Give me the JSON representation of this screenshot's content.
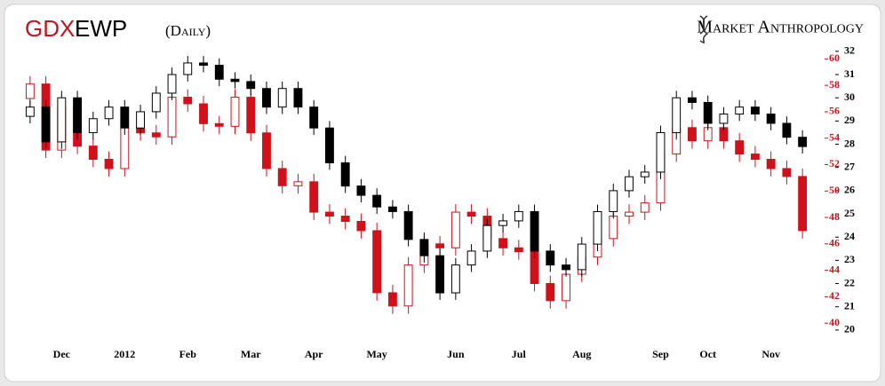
{
  "chart_data": {
    "type": "candlestick",
    "subtitle": "(Daily)",
    "brand": "Market Anthropology",
    "categories": [
      null,
      null,
      "Dec",
      null,
      null,
      null,
      "2012",
      null,
      null,
      null,
      "Feb",
      null,
      null,
      null,
      "Mar",
      null,
      null,
      null,
      "Apr",
      null,
      null,
      null,
      "May",
      null,
      null,
      null,
      null,
      "Jun",
      null,
      null,
      null,
      "Jul",
      null,
      null,
      null,
      "Aug",
      null,
      null,
      null,
      null,
      "Sep",
      null,
      null,
      "Oct",
      null,
      null,
      null,
      "Nov",
      null,
      null
    ],
    "ylim": [
      19.5,
      32.3
    ],
    "yticks": [
      20,
      21,
      22,
      23,
      24,
      25,
      26,
      27,
      28,
      29,
      30,
      31,
      32
    ],
    "y2lim": [
      38.6,
      61.1
    ],
    "y2ticks": [
      40,
      42,
      44,
      46,
      48,
      50,
      52,
      54,
      56,
      58,
      60
    ],
    "series": [
      {
        "name": "EWP",
        "color": "#000000",
        "axis": "y",
        "open": [
          29.2,
          29.6,
          28.1,
          30.0,
          28.5,
          29.1,
          29.6,
          28.7,
          29.4,
          30.2,
          31.0,
          31.5,
          31.4,
          30.8,
          30.7,
          30.4,
          29.6,
          30.4,
          29.6,
          28.7,
          27.2,
          26.2,
          25.8,
          25.3,
          25.1,
          23.9,
          23.2,
          21.6,
          22.8,
          23.4,
          24.5,
          24.7,
          25.1,
          23.4,
          22.8,
          22.6,
          23.7,
          25.1,
          26.0,
          26.6,
          26.8,
          28.5,
          30.0,
          29.8,
          28.9,
          29.3,
          29.6,
          29.3,
          28.9,
          28.3
        ],
        "high": [
          29.9,
          29.9,
          30.3,
          30.3,
          29.4,
          29.9,
          29.9,
          29.7,
          30.5,
          31.3,
          31.8,
          31.8,
          31.7,
          31.1,
          31.0,
          30.7,
          30.7,
          30.7,
          29.9,
          29.0,
          27.5,
          26.5,
          26.1,
          25.6,
          25.4,
          24.2,
          23.5,
          23.1,
          23.7,
          24.8,
          25.0,
          25.4,
          25.4,
          23.7,
          23.1,
          24.0,
          25.4,
          26.3,
          26.9,
          27.1,
          28.8,
          30.3,
          30.3,
          30.1,
          29.6,
          29.9,
          29.9,
          29.6,
          29.2,
          28.6
        ],
        "low": [
          28.9,
          27.8,
          27.8,
          28.2,
          28.2,
          28.8,
          28.4,
          28.4,
          29.1,
          29.9,
          30.7,
          31.1,
          30.5,
          30.4,
          30.1,
          29.3,
          29.3,
          29.3,
          28.4,
          26.9,
          25.9,
          25.5,
          25.0,
          24.8,
          23.6,
          22.9,
          21.3,
          21.3,
          22.5,
          23.1,
          24.2,
          24.4,
          23.1,
          22.5,
          22.3,
          22.3,
          23.4,
          24.8,
          25.7,
          26.3,
          26.5,
          28.2,
          29.5,
          28.6,
          28.6,
          29.0,
          29.0,
          28.6,
          28.0,
          27.6
        ],
        "close": [
          29.6,
          28.1,
          30.0,
          28.5,
          29.1,
          29.6,
          28.7,
          29.4,
          30.2,
          31.0,
          31.5,
          31.4,
          30.8,
          30.7,
          30.4,
          29.6,
          30.4,
          29.6,
          28.7,
          27.2,
          26.2,
          25.8,
          25.3,
          25.1,
          23.9,
          23.2,
          21.6,
          22.8,
          23.4,
          24.5,
          24.7,
          25.1,
          23.4,
          22.8,
          22.6,
          23.7,
          25.1,
          26.0,
          26.6,
          26.8,
          28.5,
          30.0,
          29.8,
          28.9,
          29.3,
          29.6,
          29.3,
          28.9,
          28.3,
          27.9
        ]
      },
      {
        "name": "GDX",
        "color": "#d0111b",
        "axis": "y2",
        "open": [
          57.0,
          58.1,
          53.1,
          56.4,
          53.4,
          52.4,
          51.7,
          54.8,
          54.4,
          54.1,
          57.1,
          56.6,
          55.1,
          54.9,
          57.1,
          54.4,
          51.7,
          50.4,
          50.7,
          48.4,
          48.1,
          47.7,
          47.0,
          42.3,
          41.3,
          44.4,
          46.0,
          45.7,
          48.4,
          48.1,
          46.4,
          45.7,
          45.4,
          43.0,
          41.7,
          43.7,
          45.0,
          46.4,
          48.1,
          48.4,
          49.1,
          52.8,
          54.8,
          53.8,
          54.8,
          53.8,
          52.8,
          52.4,
          51.7,
          51.1
        ],
        "high": [
          58.7,
          58.7,
          57.0,
          57.0,
          54.0,
          53.0,
          55.4,
          55.4,
          55.0,
          57.7,
          57.7,
          57.2,
          55.7,
          57.7,
          57.7,
          55.0,
          52.3,
          51.3,
          51.3,
          49.0,
          48.7,
          48.3,
          47.6,
          42.9,
          45.0,
          46.6,
          46.6,
          49.0,
          49.0,
          48.7,
          47.0,
          46.3,
          46.0,
          43.6,
          44.3,
          45.6,
          47.0,
          48.7,
          49.0,
          49.7,
          53.4,
          55.4,
          55.4,
          55.4,
          55.4,
          54.4,
          53.4,
          53.0,
          52.3,
          51.7
        ],
        "low": [
          56.4,
          52.5,
          52.5,
          52.8,
          51.8,
          51.1,
          51.1,
          53.8,
          53.5,
          53.5,
          56.0,
          54.5,
          54.3,
          54.3,
          53.8,
          51.1,
          49.8,
          49.8,
          47.8,
          47.5,
          47.1,
          46.4,
          41.7,
          40.7,
          40.7,
          43.8,
          45.1,
          45.1,
          47.5,
          45.8,
          45.1,
          44.8,
          42.4,
          41.1,
          41.1,
          43.1,
          44.4,
          45.8,
          47.5,
          47.8,
          48.5,
          52.2,
          53.2,
          53.2,
          53.2,
          52.2,
          51.8,
          51.1,
          50.5,
          46.4
        ],
        "close": [
          58.1,
          53.1,
          56.4,
          53.4,
          52.4,
          51.7,
          54.8,
          54.4,
          54.1,
          57.1,
          56.6,
          55.1,
          54.9,
          57.1,
          54.4,
          51.7,
          50.4,
          50.7,
          48.4,
          48.1,
          47.7,
          47.0,
          42.3,
          41.3,
          44.4,
          46.0,
          45.7,
          48.4,
          48.1,
          46.4,
          45.7,
          45.4,
          43.0,
          41.7,
          43.7,
          45.0,
          46.4,
          48.1,
          48.4,
          49.1,
          52.8,
          54.8,
          53.8,
          54.8,
          53.8,
          52.8,
          52.4,
          51.7,
          51.1,
          47.0
        ]
      }
    ]
  }
}
